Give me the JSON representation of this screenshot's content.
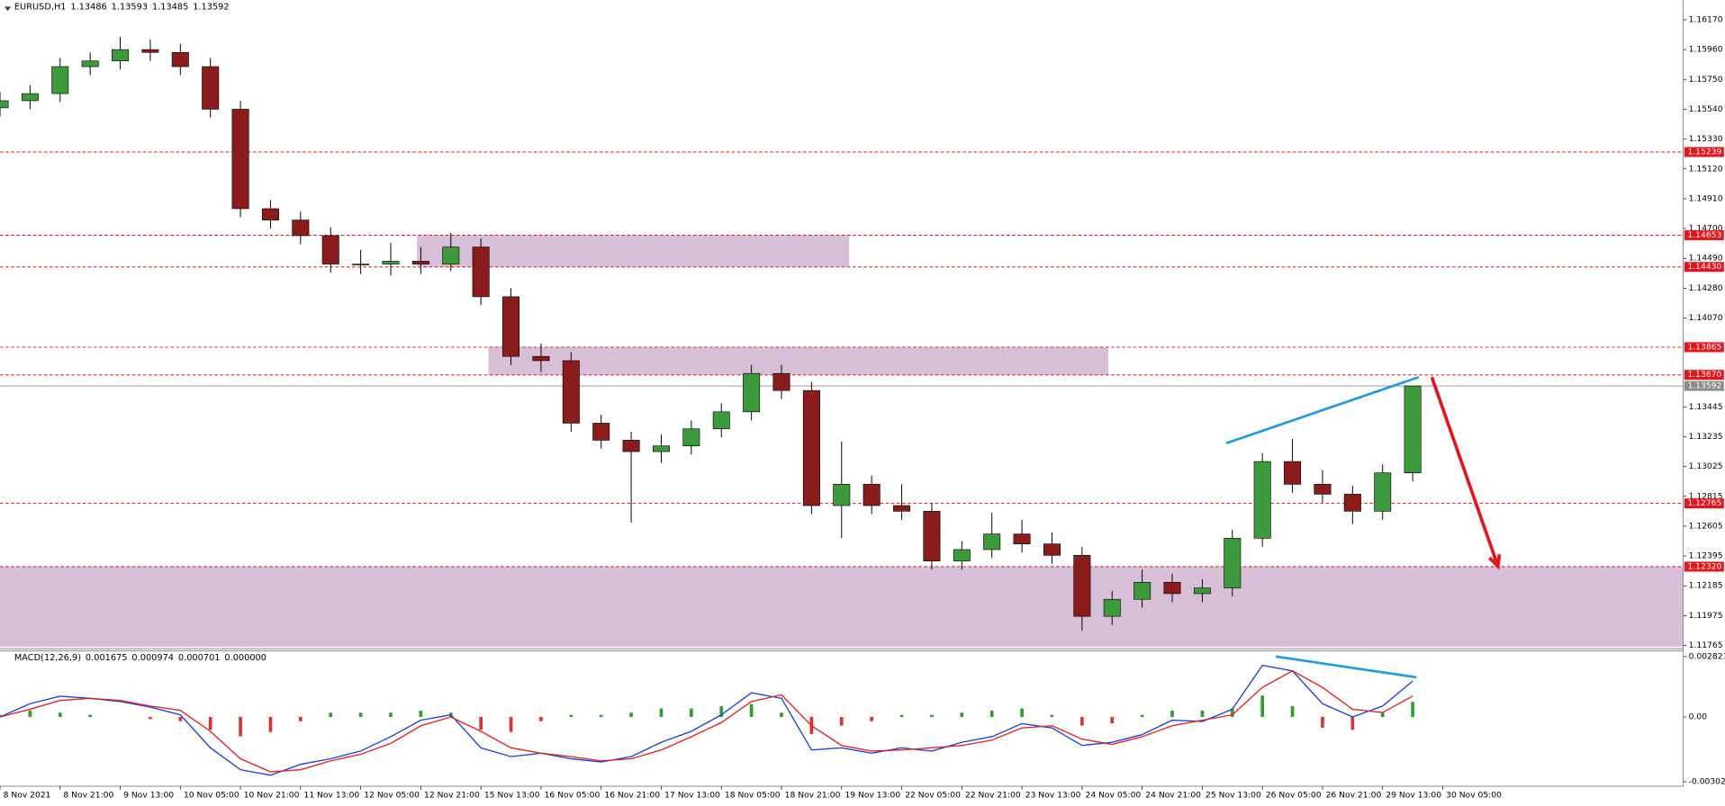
{
  "chart_data": [
    {
      "type": "candlestick",
      "title": "EURUSD,H1",
      "title_values": [
        1.13486,
        1.13593,
        1.13485,
        1.13592
      ],
      "xlim": [
        0,
        448
      ],
      "ylim": [
        1.11742,
        1.16309
      ],
      "yticks": [
        {
          "value": 1.1617,
          "label": "1.16170"
        },
        {
          "value": 1.1596,
          "label": "1.15960"
        },
        {
          "value": 1.1575,
          "label": "1.15750"
        },
        {
          "value": 1.1554,
          "label": "1.15540"
        },
        {
          "value": 1.1533,
          "label": "1.15330"
        },
        {
          "value": 1.1512,
          "label": "1.15120"
        },
        {
          "value": 1.1491,
          "label": "1.14910"
        },
        {
          "value": 1.147,
          "label": "1.14700"
        },
        {
          "value": 1.1449,
          "label": "1.14490"
        },
        {
          "value": 1.1428,
          "label": "1.14280"
        },
        {
          "value": 1.1407,
          "label": "1.14070"
        },
        1.13445,
        1.13235,
        1.13025,
        1.12815,
        1.12605,
        1.12395,
        1.12185,
        1.11975,
        1.11765
      ],
      "levels": [
        1.15239,
        1.14653,
        {
          "value": 1.1443,
          "label": "1.14430"
        },
        1.13865,
        {
          "value": 1.1367,
          "label": "1.13670"
        },
        1.12765,
        {
          "value": 1.1232,
          "label": "1.12320"
        }
      ],
      "level_color": "#e8141c",
      "current_price": 1.13592,
      "current_price_color": "#8c8c8c",
      "zones": [
        {
          "x": [
            111,
            226
          ],
          "y": [
            1.14653,
            1.1443
          ]
        },
        {
          "x": [
            130,
            295
          ],
          "y": [
            1.13865,
            1.1367
          ]
        },
        {
          "x": [
            0,
            448
          ],
          "y": [
            1.1232,
            1.11755
          ]
        }
      ],
      "zone_color": "#d8bfd8",
      "trendlines": [
        {
          "x": [
            326.4,
            377.6
          ],
          "y": [
            1.13189,
            1.13654
          ],
          "color": "#1e9be6"
        }
      ],
      "arrows": [
        {
          "x": [
            381.1,
            398.7
          ],
          "y": [
            1.13654,
            1.12322
          ],
          "color": "#e8141c"
        }
      ],
      "up_color": "#3c9a3c",
      "down_color": "#8b1c1c",
      "x": [
        0,
        8,
        16,
        24,
        32,
        40,
        48,
        56,
        64,
        72,
        80,
        88,
        96,
        104,
        112,
        120,
        128,
        136,
        144,
        152,
        160,
        168,
        176,
        184,
        192,
        200,
        208,
        216,
        224,
        232,
        240,
        248,
        256,
        264,
        272,
        280,
        288,
        296,
        304,
        312,
        320,
        328,
        336,
        344,
        352,
        360,
        368,
        376
      ],
      "open": [
        1.1555,
        1.156,
        1.1565,
        1.1584,
        1.1588,
        1.1596,
        1.1594,
        1.1584,
        1.1554,
        1.1484,
        1.1476,
        1.1465,
        1.1445,
        1.1445,
        1.1447,
        1.1445,
        1.1457,
        1.1422,
        1.138,
        1.1377,
        1.1333,
        1.1321,
        1.1313,
        1.1317,
        1.1329,
        1.1341,
        1.1368,
        1.1356,
        1.1275,
        1.129,
        1.1275,
        1.1271,
        1.1236,
        1.1244,
        1.1255,
        1.1248,
        1.124,
        1.1197,
        1.1209,
        1.1221,
        1.1213,
        1.1217,
        1.1252,
        1.1306,
        1.129,
        1.1283,
        1.1271,
        1.1298
      ],
      "high": [
        1.1566,
        1.1571,
        1.159,
        1.1594,
        1.1605,
        1.1603,
        1.16,
        1.159,
        1.156,
        1.149,
        1.1482,
        1.1471,
        1.1455,
        1.146,
        1.1457,
        1.1467,
        1.1463,
        1.1428,
        1.1389,
        1.1383,
        1.1339,
        1.1327,
        1.1325,
        1.1335,
        1.1347,
        1.1374,
        1.1374,
        1.1362,
        1.132,
        1.1296,
        1.129,
        1.1277,
        1.125,
        1.127,
        1.1265,
        1.1256,
        1.1246,
        1.1215,
        1.123,
        1.1227,
        1.1223,
        1.1258,
        1.1312,
        1.1322,
        1.13,
        1.1289,
        1.1304,
        1.13593
      ],
      "low": [
        1.1549,
        1.1554,
        1.1559,
        1.1578,
        1.1582,
        1.1588,
        1.1578,
        1.1548,
        1.1478,
        1.147,
        1.1459,
        1.1439,
        1.1438,
        1.1437,
        1.1438,
        1.144,
        1.1416,
        1.1374,
        1.1369,
        1.1327,
        1.1315,
        1.1263,
        1.1305,
        1.1311,
        1.1323,
        1.1335,
        1.135,
        1.1269,
        1.1252,
        1.1269,
        1.1265,
        1.123,
        1.123,
        1.1238,
        1.1242,
        1.1234,
        1.1187,
        1.1191,
        1.1203,
        1.1207,
        1.1207,
        1.1211,
        1.1246,
        1.1284,
        1.1277,
        1.1262,
        1.1265,
        1.1292
      ],
      "close": [
        1.156,
        1.1565,
        1.1584,
        1.1588,
        1.1596,
        1.1594,
        1.1584,
        1.1554,
        1.1484,
        1.1476,
        1.1465,
        1.1445,
        1.1445,
        1.1447,
        1.1445,
        1.1457,
        1.1422,
        1.138,
        1.1377,
        1.1333,
        1.1321,
        1.1313,
        1.1317,
        1.1329,
        1.1341,
        1.1368,
        1.1356,
        1.1275,
        1.129,
        1.1275,
        1.1271,
        1.1236,
        1.1244,
        1.1255,
        1.1248,
        1.124,
        1.1197,
        1.1209,
        1.1221,
        1.1213,
        1.1217,
        1.1252,
        1.1306,
        1.129,
        1.1283,
        1.1271,
        1.1298,
        1.13592
      ]
    },
    {
      "type": "macd",
      "title": "MACD(12,26,9)",
      "title_values": [
        0.001675,
        0.000974,
        0.000701,
        {
          "value": 0,
          "label": "0.000000"
        }
      ],
      "xlim": [
        0,
        448
      ],
      "ylim": [
        -0.00323,
        0.00308
      ],
      "yticks": [
        0.002821,
        {
          "value": 0,
          "label": "0.00"
        },
        -0.00302
      ],
      "xticks": [
        {
          "value": 0,
          "label": "8 Nov 2021"
        },
        {
          "value": 16,
          "label": "8 Nov 21:00"
        },
        {
          "value": 32,
          "label": "9 Nov 13:00"
        },
        {
          "value": 48,
          "label": "10 Nov 05:00"
        },
        {
          "value": 64,
          "label": "10 Nov 21:00"
        },
        {
          "value": 80,
          "label": "11 Nov 13:00"
        },
        {
          "value": 96,
          "label": "12 Nov 05:00"
        },
        {
          "value": 112,
          "label": "12 Nov 21:00"
        },
        {
          "value": 128,
          "label": "15 Nov 13:00"
        },
        {
          "value": 144,
          "label": "16 Nov 05:00"
        },
        {
          "value": 160,
          "label": "16 Nov 21:00"
        },
        {
          "value": 176,
          "label": "17 Nov 13:00"
        },
        {
          "value": 192,
          "label": "18 Nov 05:00"
        },
        {
          "value": 208,
          "label": "18 Nov 21:00"
        },
        {
          "value": 224,
          "label": "19 Nov 13:00"
        },
        {
          "value": 240,
          "label": "22 Nov 05:00"
        },
        {
          "value": 256,
          "label": "22 Nov 21:00"
        },
        {
          "value": 272,
          "label": "23 Nov 13:00"
        },
        {
          "value": 288,
          "label": "24 Nov 05:00"
        },
        {
          "value": 304,
          "label": "24 Nov 21:00"
        },
        {
          "value": 320,
          "label": "25 Nov 13:00"
        },
        {
          "value": 336,
          "label": "26 Nov 05:00"
        },
        {
          "value": 352,
          "label": "26 Nov 21:00"
        },
        {
          "value": 368,
          "label": "29 Nov 13:00"
        },
        {
          "value": 384,
          "label": "30 Nov 05:00"
        }
      ],
      "trendlines": [
        {
          "x": [
            339.6,
            377
          ],
          "y": [
            0.00282,
            0.00185
          ],
          "color": "#1e9be6"
        }
      ],
      "x": [
        0,
        8,
        16,
        24,
        32,
        40,
        48,
        56,
        64,
        72,
        80,
        88,
        96,
        104,
        112,
        120,
        128,
        136,
        144,
        152,
        160,
        168,
        176,
        184,
        192,
        200,
        208,
        216,
        224,
        232,
        240,
        248,
        256,
        264,
        272,
        280,
        288,
        296,
        304,
        312,
        320,
        328,
        336,
        344,
        352,
        360,
        368,
        376
      ],
      "histogram": {
        "up_color": "#2e9e2e",
        "down_color": "#e03030",
        "values": [
          0.0001,
          0.0003,
          0.0002,
          0.0001,
          0.0,
          -0.0001,
          -0.0002,
          -0.0006,
          -0.0009,
          -0.0007,
          -0.0002,
          0.0002,
          0.0002,
          0.0002,
          0.0003,
          0.0002,
          -0.0006,
          -0.0007,
          -0.0002,
          0.0001,
          0.0001,
          0.0002,
          0.0004,
          0.0004,
          0.0005,
          0.0006,
          0.0002,
          -0.0008,
          -0.0004,
          -0.0002,
          0.0001,
          0.0001,
          0.0002,
          0.0003,
          0.0004,
          0.0001,
          -0.0004,
          -0.0003,
          0.0001,
          0.0003,
          0.0003,
          0.0004,
          0.001,
          0.0005,
          -0.0005,
          -0.0006,
          0.0002,
          0.000701
        ]
      },
      "series": [
        {
          "color": "#1f3fe0",
          "values": [
            0,
            0.00062,
            0.00097,
            0.00087,
            0.00072,
            0.00046,
            0.0001,
            -0.00144,
            -0.00246,
            -0.00272,
            -0.00221,
            -0.00195,
            -0.00159,
            -0.00092,
            -0.00015,
            0.0001,
            -0.00144,
            -0.00185,
            -0.00169,
            -0.00195,
            -0.0021,
            -0.00185,
            -0.00118,
            -0.00067,
            0.0001,
            0.00113,
            0.00087,
            -0.00154,
            -0.00144,
            -0.00169,
            -0.00144,
            -0.00159,
            -0.00118,
            -0.00092,
            -0.00031,
            -0.00051,
            -0.00133,
            -0.00118,
            -0.00082,
            -0.00015,
            -0.00021,
            0.00036,
            0.00241,
            0.00215,
            0.00062,
            0,
            0.00051,
            0.001675
          ]
        },
        {
          "color": "#e82020",
          "values": [
            0,
            0.00036,
            0.00077,
            0.00087,
            0.00077,
            0.00051,
            0.00031,
            -0.00067,
            -0.00195,
            -0.00256,
            -0.00246,
            -0.00205,
            -0.00174,
            -0.00123,
            -0.00041,
            0,
            -0.00067,
            -0.00144,
            -0.00169,
            -0.00185,
            -0.00205,
            -0.00195,
            -0.00154,
            -0.00092,
            -0.00026,
            0.00072,
            0.00103,
            -0.00041,
            -0.00133,
            -0.00159,
            -0.00154,
            -0.00144,
            -0.00133,
            -0.00108,
            -0.00051,
            -0.00041,
            -0.00103,
            -0.00128,
            -0.00092,
            -0.00041,
            -0.00015,
            0.0001,
            0.00138,
            0.00215,
            0.00138,
            0.00036,
            0.00021,
            0.000974
          ]
        }
      ]
    }
  ]
}
